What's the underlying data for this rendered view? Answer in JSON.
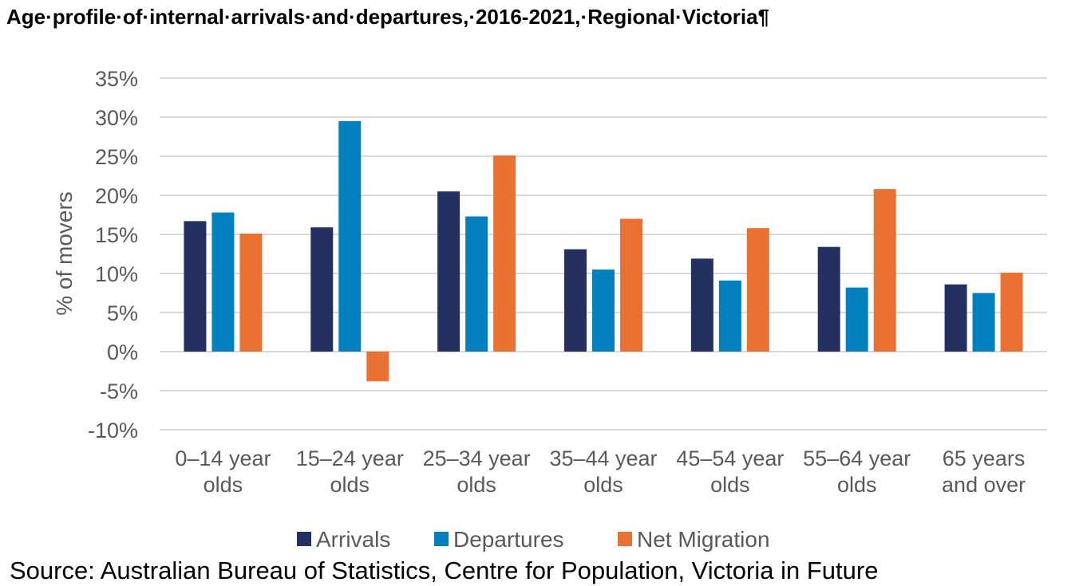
{
  "chart_data": {
    "type": "bar",
    "title": "Age·profile·of·internal·arrivals·and·departures,·2016-2021,·Regional·Victoria¶",
    "ylabel": "% of movers",
    "xlabel": "",
    "ylim": [
      -10,
      35
    ],
    "yticks": [
      35,
      30,
      25,
      20,
      15,
      10,
      5,
      0,
      -5,
      -10
    ],
    "ytick_labels": [
      "35%",
      "30%",
      "25%",
      "20%",
      "15%",
      "10%",
      "5%",
      "0%",
      "-5%",
      "-10%"
    ],
    "grid": true,
    "legend_position": "bottom",
    "categories": [
      [
        "0–14 year",
        "olds"
      ],
      [
        "15–24 year",
        "olds"
      ],
      [
        "25–34 year",
        "olds"
      ],
      [
        "35–44 year",
        "olds"
      ],
      [
        "45–54 year",
        "olds"
      ],
      [
        "55–64 year",
        "olds"
      ],
      [
        "65 years",
        "and over"
      ]
    ],
    "series": [
      {
        "name": "Arrivals",
        "color": "#233060",
        "values": [
          16.7,
          15.9,
          20.5,
          13.1,
          11.9,
          13.4,
          8.6
        ]
      },
      {
        "name": "Departures",
        "color": "#0380BE",
        "values": [
          17.8,
          29.5,
          17.3,
          10.5,
          9.1,
          8.2,
          7.5
        ]
      },
      {
        "name": "Net Migration",
        "color": "#E97132",
        "values": [
          15.1,
          -3.8,
          25.1,
          17.0,
          15.8,
          20.8,
          10.1
        ]
      }
    ]
  },
  "source": "Source: Australian Bureau of Statistics, Centre for Population, Victoria in Future"
}
